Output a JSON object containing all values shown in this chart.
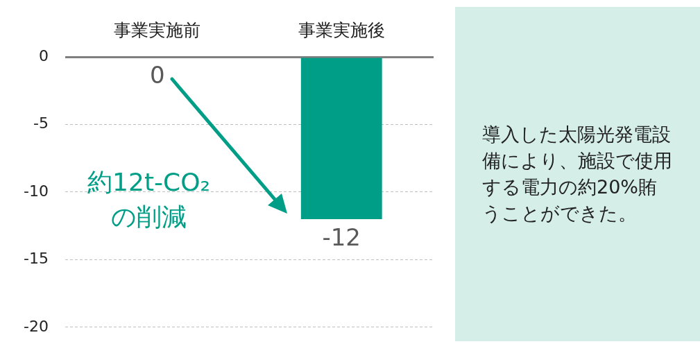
{
  "chart_data": {
    "type": "bar",
    "categories": [
      "事業実施前",
      "事業実施後"
    ],
    "values": [
      0,
      -12
    ],
    "color": "#009e87",
    "ylim": [
      -20,
      0
    ],
    "yticks": [
      0,
      -5,
      -10,
      -15,
      -20
    ],
    "grid": "y",
    "data_labels": true,
    "annotations": [
      "約12t-CO₂の削減",
      "導入した太陽光発電設備により、施設で使用する電力の約20%賄うことができた。"
    ]
  }
}
